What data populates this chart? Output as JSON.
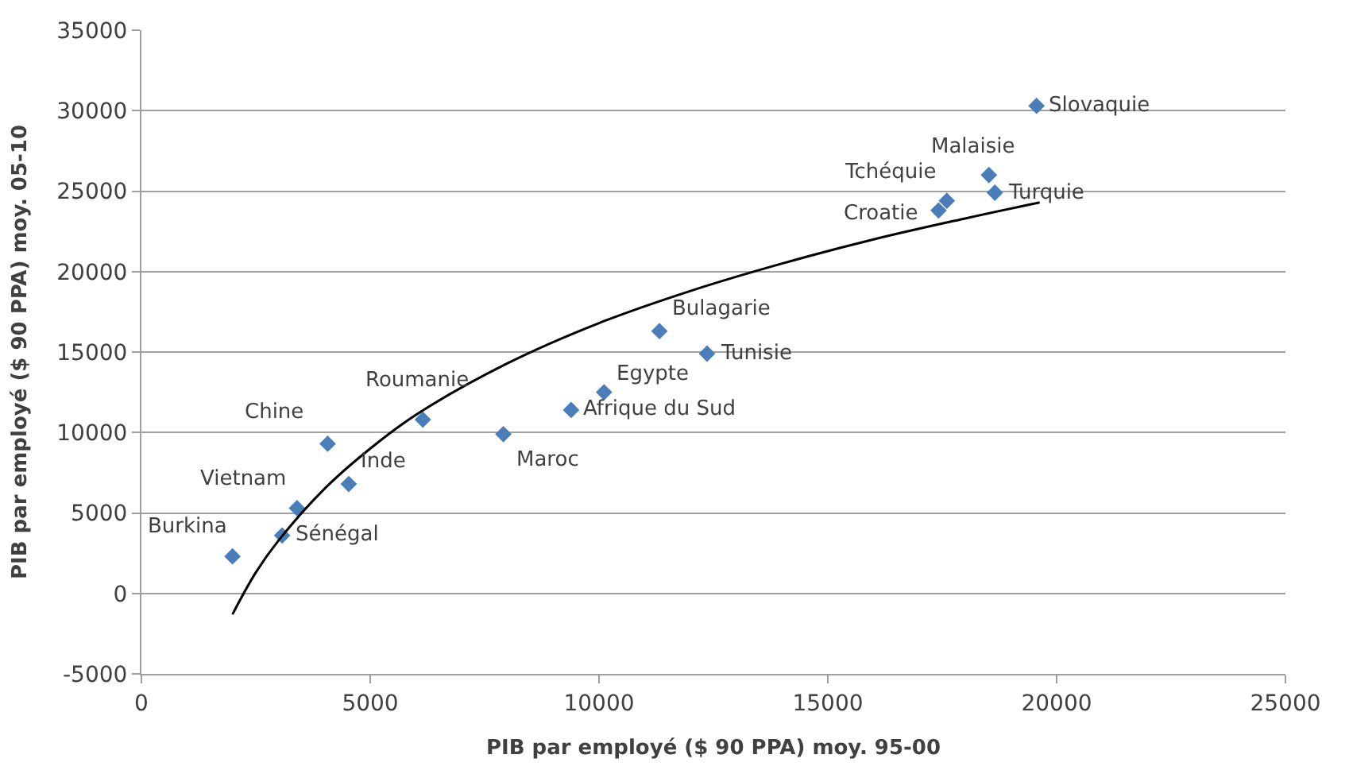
{
  "chart_data": {
    "type": "scatter",
    "xlabel": "PIB par employé ($ 90 PPA) moy. 95-00",
    "ylabel": "PIB par employé ($ 90 PPA) moy. 05-10",
    "xlim": [
      0,
      25000
    ],
    "xticks": [
      0,
      5000,
      10000,
      15000,
      20000,
      25000
    ],
    "ylim": [
      -5000,
      35000
    ],
    "yticks": [
      -5000,
      0,
      5000,
      10000,
      15000,
      20000,
      25000,
      30000,
      35000
    ],
    "grid": "y",
    "marker": "diamond",
    "series": [
      {
        "color": "#4a7ebb",
        "x": [
          1990,
          3075,
          3400,
          4070,
          4530,
          6150,
          7910,
          9390,
          10110,
          11320,
          12360,
          19560,
          18520,
          18650,
          17600,
          17420
        ],
        "values": [
          2300,
          3600,
          5300,
          9300,
          6800,
          10800,
          9900,
          11400,
          12500,
          16300,
          14900,
          30300,
          26000,
          24900,
          24400,
          23800
        ]
      },
      {
        "type": "line",
        "color": "#000000",
        "marker": "none",
        "line_style": "solid",
        "x": [
          1990,
          2500,
          3000,
          4000,
          5000,
          6000,
          8000,
          10000,
          12000,
          14000,
          16000,
          18000,
          19630
        ],
        "values": [
          -1300,
          1300,
          3300,
          6500,
          9000,
          11100,
          14300,
          16800,
          18800,
          20500,
          22000,
          23300,
          24300
        ]
      }
    ],
    "annotations": [
      {
        "text": "Burkina",
        "x": 1990,
        "y": 2320
      },
      {
        "text": "Sénégal",
        "x": 3075,
        "y": 3600
      },
      {
        "text": "Vietnam",
        "x": 3400,
        "y": 5330
      },
      {
        "text": "Chine",
        "x": 4070,
        "y": 9280
      },
      {
        "text": "Inde",
        "x": 4530,
        "y": 6840
      },
      {
        "text": "Roumanie",
        "x": 6150,
        "y": 10830
      },
      {
        "text": "Maroc",
        "x": 7910,
        "y": 9890
      },
      {
        "text": "Afrique du Sud",
        "x": 9390,
        "y": 11440
      },
      {
        "text": "Egypte",
        "x": 10110,
        "y": 12470
      },
      {
        "text": "Bulagarie",
        "x": 11320,
        "y": 16280
      },
      {
        "text": "Tunisie",
        "x": 12360,
        "y": 14910
      },
      {
        "text": "Slovaquie",
        "x": 19560,
        "y": 30310
      },
      {
        "text": "Malaisie",
        "x": 18520,
        "y": 26000
      },
      {
        "text": "Turquie",
        "x": 18650,
        "y": 24850
      },
      {
        "text": "Tchéquie",
        "x": 17600,
        "y": 24390
      },
      {
        "text": "Croatie",
        "x": 17420,
        "y": 23780
      }
    ]
  }
}
